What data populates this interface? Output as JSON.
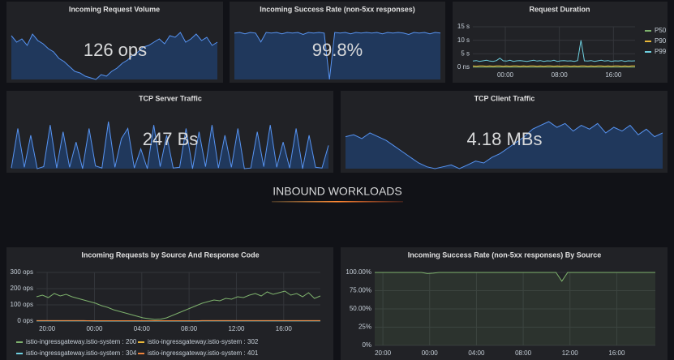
{
  "stats": [
    {
      "title": "Incoming Request Volume",
      "value": "126 ops",
      "sparkline": [
        170,
        150,
        160,
        140,
        175,
        155,
        145,
        130,
        120,
        100,
        90,
        75,
        60,
        55,
        45,
        40,
        35,
        50,
        45,
        60,
        70,
        85,
        95,
        110,
        120,
        135,
        140,
        150,
        160,
        145,
        170,
        165,
        180,
        150,
        160,
        175,
        155,
        165,
        140,
        150
      ]
    },
    {
      "title": "Incoming Success Rate (non-5xx responses)",
      "value": "99.8%",
      "sparkline": [
        99.8,
        99.9,
        99.7,
        99.9,
        99.8,
        98.5,
        99.9,
        99.8,
        99.9,
        99.7,
        99.9,
        99.8,
        99.9,
        99.6,
        99.9,
        99.8,
        99.9,
        99.8,
        93,
        99.9,
        99.8,
        99.9,
        99.7,
        99.9,
        99.8,
        99.9,
        99.8,
        99.9,
        99.7,
        99.9,
        99.8,
        99.9,
        99.8,
        99.6,
        99.9,
        99.8,
        99.9,
        99.7,
        99.9,
        99.8
      ]
    },
    {
      "title": "TCP Server Traffic",
      "value": "247 Bs",
      "sparkline": [
        20,
        600,
        30,
        500,
        10,
        40,
        650,
        20,
        550,
        30,
        400,
        10,
        600,
        50,
        20,
        700,
        30,
        450,
        600,
        20,
        300,
        10,
        650,
        40,
        500,
        20,
        30,
        600,
        10,
        550,
        40,
        650,
        20,
        500,
        30,
        600,
        10,
        20,
        550,
        40,
        650,
        30,
        400,
        20,
        600,
        10,
        500,
        30,
        20,
        350
      ]
    },
    {
      "title": "TCP Client Traffic",
      "value": "4.18 MBs",
      "sparkline": [
        4.5,
        4.6,
        4.4,
        4.7,
        4.5,
        4.3,
        4.0,
        3.7,
        3.4,
        3.1,
        2.9,
        2.8,
        2.9,
        3.0,
        2.8,
        3.0,
        3.2,
        3.1,
        3.4,
        3.6,
        3.9,
        4.2,
        4.5,
        4.9,
        5.1,
        5.3,
        5.0,
        5.2,
        4.8,
        5.1,
        4.9,
        5.2,
        4.7,
        5.0,
        4.8,
        5.1,
        4.6,
        4.9,
        4.5,
        4.7
      ]
    }
  ],
  "section_title": "INBOUND WORKLOADS",
  "chart_data": [
    {
      "type": "line",
      "title": "Request Duration",
      "grid": true,
      "legend": "right",
      "x": [
        0,
        0.5,
        1,
        1.5,
        2,
        2.5,
        3,
        3.5,
        4,
        4.5,
        5,
        5.5,
        6,
        6.5,
        7,
        7.5,
        8,
        8.5,
        9,
        9.5,
        10,
        10.5,
        11,
        11.5,
        12,
        12.5,
        13,
        13.5,
        14,
        14.5,
        15,
        15.5,
        16,
        16.5,
        17,
        17.5,
        18,
        18.5,
        19,
        19.5,
        20,
        20.5,
        21,
        21.5,
        22,
        22.5,
        23,
        23.5,
        24
      ],
      "xlim": [
        0,
        24
      ],
      "xticks": [
        {
          "value": 4.8,
          "label": "00:00"
        },
        {
          "value": 12.8,
          "label": "08:00"
        },
        {
          "value": 20.8,
          "label": "16:00"
        }
      ],
      "ylim": [
        0,
        15
      ],
      "yticks": [
        {
          "value": 0,
          "label": "0 ns"
        },
        {
          "value": 5,
          "label": "5 s"
        },
        {
          "value": 10,
          "label": "10 s"
        },
        {
          "value": 15,
          "label": "15 s"
        }
      ],
      "series": [
        {
          "name": "P50",
          "color": "#7eb26d",
          "values": [
            0.1,
            0.1,
            0.1,
            0.1,
            0.1,
            0.1,
            0.1,
            0.1,
            0.1,
            0.1,
            0.1,
            0.1,
            0.1,
            0.1,
            0.1,
            0.1,
            0.1,
            0.1,
            0.1,
            0.1,
            0.1,
            0.1,
            0.1,
            0.1,
            0.1,
            0.1,
            0.1,
            0.1,
            0.1,
            0.1,
            0.1,
            0.1,
            0.1,
            0.1,
            0.1,
            0.1,
            0.1,
            0.1,
            0.1,
            0.1,
            0.1,
            0.1,
            0.1,
            0.1,
            0.1,
            0.1,
            0.1,
            0.1,
            0.1
          ]
        },
        {
          "name": "P90",
          "color": "#eab839",
          "values": [
            0.5,
            0.4,
            0.5,
            0.5,
            0.4,
            0.5,
            0.4,
            0.5,
            0.5,
            0.4,
            0.5,
            0.4,
            0.5,
            0.5,
            0.4,
            0.5,
            0.4,
            0.5,
            0.5,
            0.4,
            0.5,
            0.4,
            0.5,
            0.5,
            0.4,
            0.5,
            0.4,
            0.5,
            0.5,
            0.4,
            0.5,
            0.4,
            0.5,
            0.5,
            0.4,
            0.5,
            0.4,
            0.5,
            0.5,
            0.4,
            0.5,
            0.4,
            0.5,
            0.5,
            0.4,
            0.5,
            0.4,
            0.5,
            0.5
          ]
        },
        {
          "name": "P99",
          "color": "#6ed0e0",
          "values": [
            2.3,
            2.5,
            2.2,
            2.4,
            2.6,
            2.3,
            2.2,
            2.5,
            3.4,
            2.4,
            2.3,
            2.6,
            2.2,
            2.4,
            2.5,
            2.3,
            2.2,
            2.4,
            2.6,
            2.3,
            2.5,
            2.2,
            2.4,
            2.3,
            2.6,
            2.2,
            2.4,
            2.5,
            2.3,
            2.4,
            2.2,
            2.5,
            10,
            2.4,
            2.3,
            2.5,
            2.2,
            2.4,
            2.6,
            2.3,
            2.5,
            2.2,
            2.4,
            2.3,
            2.5,
            2.2,
            2.4,
            2.3,
            2.4
          ]
        }
      ]
    },
    {
      "type": "line",
      "title": "Incoming Requests by Source And Response Code",
      "grid": true,
      "legend": "bottom",
      "x": [
        0,
        0.5,
        1,
        1.5,
        2,
        2.5,
        3,
        3.5,
        4,
        4.5,
        5,
        5.5,
        6,
        6.5,
        7,
        7.5,
        8,
        8.5,
        9,
        9.5,
        10,
        10.5,
        11,
        11.5,
        12,
        12.5,
        13,
        13.5,
        14,
        14.5,
        15,
        15.5,
        16,
        16.5,
        17,
        17.5,
        18,
        18.5,
        19,
        19.5,
        20,
        20.5,
        21,
        21.5,
        22,
        22.5,
        23,
        23.5,
        24
      ],
      "xlim": [
        0,
        24
      ],
      "xticks": [
        {
          "value": 0.9,
          "label": "20:00"
        },
        {
          "value": 4.9,
          "label": "00:00"
        },
        {
          "value": 8.9,
          "label": "04:00"
        },
        {
          "value": 12.9,
          "label": "08:00"
        },
        {
          "value": 16.9,
          "label": "12:00"
        },
        {
          "value": 20.9,
          "label": "16:00"
        }
      ],
      "ylim": [
        0,
        300
      ],
      "yticks": [
        {
          "value": 0,
          "label": "0 ops"
        },
        {
          "value": 100,
          "label": "100 ops"
        },
        {
          "value": 200,
          "label": "200 ops"
        },
        {
          "value": 300,
          "label": "300 ops"
        }
      ],
      "series": [
        {
          "name": "istio-ingressgateway.istio-system : 200",
          "color": "#7eb26d",
          "values": [
            150,
            160,
            145,
            170,
            155,
            165,
            150,
            140,
            130,
            120,
            110,
            95,
            85,
            70,
            60,
            50,
            40,
            30,
            20,
            15,
            10,
            12,
            20,
            35,
            50,
            65,
            80,
            95,
            110,
            120,
            130,
            125,
            140,
            135,
            150,
            145,
            160,
            170,
            155,
            180,
            165,
            175,
            185,
            160,
            170,
            150,
            175,
            140,
            155
          ]
        },
        {
          "name": "istio-ingressgateway.istio-system : 302",
          "color": "#eab839",
          "values": [
            2,
            2,
            2,
            2,
            2,
            2,
            2,
            2,
            2,
            2,
            1,
            1,
            1,
            1,
            1,
            1,
            1,
            1,
            1,
            1,
            1,
            1,
            1,
            1,
            1,
            1,
            1,
            1,
            2,
            2,
            2,
            2,
            2,
            2,
            2,
            2,
            2,
            2,
            2,
            2,
            2,
            2,
            2,
            2,
            2,
            2,
            2,
            2,
            2
          ]
        },
        {
          "name": "istio-ingressgateway.istio-system : 304",
          "color": "#6ed0e0",
          "values": [
            1,
            1,
            1,
            1,
            1,
            1,
            1,
            1,
            1,
            1,
            0,
            0,
            0,
            0,
            0,
            0,
            0,
            0,
            0,
            0,
            0,
            0,
            0,
            0,
            0,
            0,
            0,
            0,
            1,
            1,
            1,
            1,
            1,
            1,
            1,
            1,
            1,
            1,
            1,
            1,
            1,
            1,
            1,
            1,
            1,
            1,
            1,
            1,
            1
          ]
        },
        {
          "name": "istio-ingressgateway.istio-system : 401",
          "color": "#ef843c",
          "values": [
            3,
            3,
            3,
            3,
            3,
            3,
            3,
            3,
            3,
            2,
            2,
            2,
            2,
            2,
            2,
            2,
            2,
            2,
            2,
            2,
            2,
            2,
            2,
            2,
            2,
            2,
            2,
            2,
            3,
            3,
            3,
            3,
            3,
            3,
            3,
            3,
            3,
            3,
            3,
            3,
            3,
            3,
            3,
            3,
            3,
            3,
            3,
            3,
            3
          ]
        }
      ]
    },
    {
      "type": "area",
      "title": "Incoming Success Rate (non-5xx responses) By Source",
      "grid": true,
      "x": [
        0,
        0.5,
        1,
        1.5,
        2,
        2.5,
        3,
        3.5,
        4,
        4.5,
        5,
        5.5,
        6,
        6.5,
        7,
        7.5,
        8,
        8.5,
        9,
        9.5,
        10,
        10.5,
        11,
        11.5,
        12,
        12.5,
        13,
        13.5,
        14,
        14.5,
        15,
        15.5,
        16,
        16.5,
        17,
        17.5,
        18,
        18.5,
        19,
        19.5,
        20,
        20.5,
        21,
        21.5,
        22,
        22.5,
        23,
        23.5,
        24
      ],
      "xlim": [
        0,
        24
      ],
      "xticks": [
        {
          "value": 0.7,
          "label": "20:00"
        },
        {
          "value": 4.7,
          "label": "00:00"
        },
        {
          "value": 8.7,
          "label": "04:00"
        },
        {
          "value": 12.7,
          "label": "08:00"
        },
        {
          "value": 16.7,
          "label": "12:00"
        },
        {
          "value": 20.7,
          "label": "16:00"
        }
      ],
      "ylim": [
        0,
        100
      ],
      "yticks": [
        {
          "value": 0,
          "label": "0%"
        },
        {
          "value": 25,
          "label": "25%"
        },
        {
          "value": 50,
          "label": "50.00%"
        },
        {
          "value": 75,
          "label": "75.00%"
        },
        {
          "value": 100,
          "label": "100.00%"
        }
      ],
      "series": [
        {
          "color": "#7eb26d",
          "values": [
            100,
            100,
            100,
            100,
            100,
            100,
            100,
            100,
            100,
            98.5,
            99,
            100,
            100,
            100,
            100,
            100,
            100,
            100,
            100,
            100,
            100,
            100,
            100,
            100,
            100,
            100,
            100,
            100,
            100,
            100,
            100,
            100,
            88,
            100,
            100,
            100,
            100,
            100,
            100,
            100,
            100,
            100,
            100,
            100,
            100,
            100,
            100,
            100,
            100
          ]
        }
      ]
    }
  ]
}
